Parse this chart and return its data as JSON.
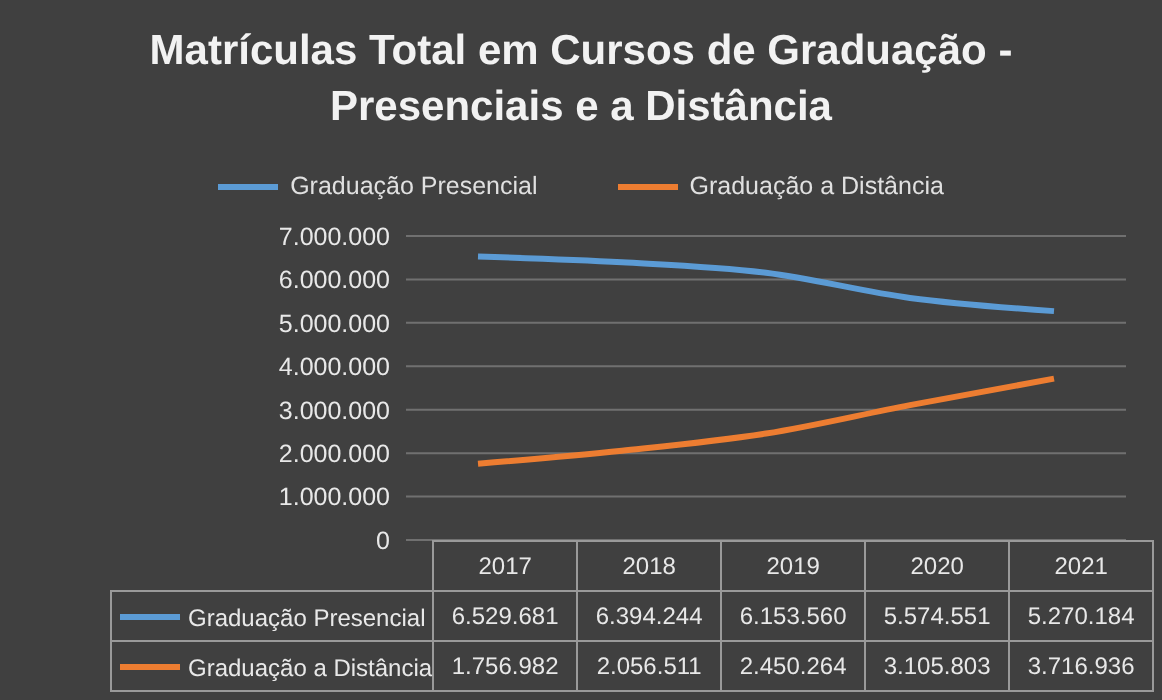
{
  "chart_data": {
    "type": "line",
    "title": "Matrículas Total em Cursos de Graduação - Presenciais e a Distância",
    "categories": [
      "2017",
      "2018",
      "2019",
      "2020",
      "2021"
    ],
    "series": [
      {
        "name": "Graduação Presencial",
        "color": "#5b9bd5",
        "values": [
          6529681,
          6394244,
          6153560,
          5574551,
          5270184
        ],
        "value_labels": [
          "6.529.681",
          "6.394.244",
          "6.153.560",
          "5.574.551",
          "5.270.184"
        ]
      },
      {
        "name": "Graduação a Distância",
        "color": "#ed7d31",
        "values": [
          1756982,
          2056511,
          2450264,
          3105803,
          3716936
        ],
        "value_labels": [
          "1.756.982",
          "2.056.511",
          "2.450.264",
          "3.105.803",
          "3.716.936"
        ]
      }
    ],
    "ylim": [
      0,
      7000000
    ],
    "yticks": [
      0,
      {
        "value": 1000000,
        "label": "1.000.000"
      },
      {
        "value": 2000000,
        "label": "2.000.000"
      },
      {
        "value": 3000000,
        "label": "3.000.000"
      },
      {
        "value": 4000000,
        "label": "4.000.000"
      },
      {
        "value": 5000000,
        "label": "5.000.000"
      },
      {
        "value": 6000000,
        "label": "6.000.000"
      },
      {
        "value": 7000000,
        "label": "7.000.000"
      }
    ],
    "grid": "y",
    "legend": "top"
  }
}
